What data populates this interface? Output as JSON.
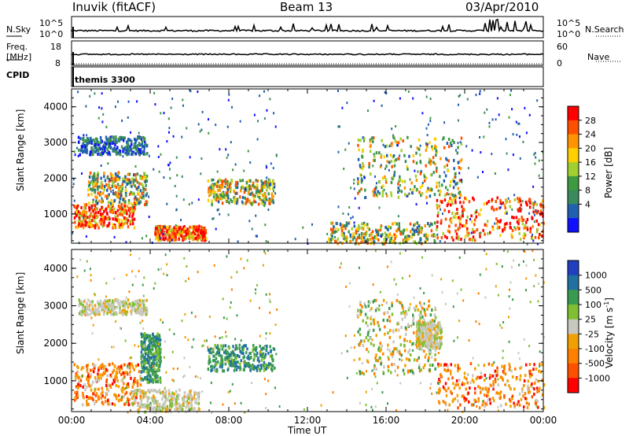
{
  "header": {
    "station": "Inuvik (fitACF)",
    "beam": "Beam 13",
    "date": "03/Apr/2010"
  },
  "panels": {
    "nsky": {
      "label": "N.Sky",
      "left_ticks": [
        "10^5",
        "10^0"
      ],
      "right_label": "N.Search",
      "right_ticks": [
        "10^5",
        "10^0"
      ],
      "right_line_style": "dotted"
    },
    "freq": {
      "label_top": "Freq.",
      "label_bottom": "[MHz]",
      "left_ticks": [
        "18",
        "8"
      ],
      "right_label": "Nave",
      "right_ticks": [
        "60",
        "0"
      ],
      "right_line_style": "dotted"
    },
    "cpid": {
      "label": "CPID",
      "value": "themis 3300"
    }
  },
  "chart_data": [
    {
      "type": "heatmap",
      "title": "",
      "quantity": "Power",
      "ylabel": "Slant Range [km]",
      "xlabel": "",
      "ylim": [
        180,
        4500
      ],
      "yticks": [
        "1000",
        "2000",
        "3000",
        "4000"
      ],
      "colorbar": {
        "label": "Power [dB]",
        "ticks": [
          "28",
          "24",
          "20",
          "16",
          "12",
          "8",
          "4"
        ],
        "colors": [
          "#ff0000",
          "#ff5000",
          "#ff9400",
          "#ffd000",
          "#a0d030",
          "#3e9a3e",
          "#3a8a5e",
          "#2060b0",
          "#1010ff"
        ]
      },
      "regions": [
        {
          "x": [
            0.1,
            3.2
          ],
          "y": [
            650,
            1300
          ],
          "level": "high"
        },
        {
          "x": [
            0.8,
            3.8
          ],
          "y": [
            1300,
            2200
          ],
          "level": "mid"
        },
        {
          "x": [
            4.2,
            6.8
          ],
          "y": [
            300,
            700
          ],
          "level": "high"
        },
        {
          "x": [
            6.9,
            10.3
          ],
          "y": [
            1300,
            2000
          ],
          "level": "mid"
        },
        {
          "x": [
            0.3,
            3.8
          ],
          "y": [
            2700,
            3200
          ],
          "level": "low"
        },
        {
          "x": [
            14.5,
            19.8
          ],
          "y": [
            1500,
            3200
          ],
          "level": "mid"
        },
        {
          "x": [
            18.5,
            24.0
          ],
          "y": [
            300,
            1500
          ],
          "level": "high"
        },
        {
          "x": [
            13.0,
            18.5
          ],
          "y": [
            200,
            800
          ],
          "level": "mid"
        }
      ]
    },
    {
      "type": "heatmap",
      "title": "",
      "quantity": "Velocity",
      "ylabel": "Slant Range [km]",
      "xlabel": "Time UT",
      "xticks": [
        "00:00",
        "04:00",
        "08:00",
        "12:00",
        "16:00",
        "20:00",
        "00:00"
      ],
      "ylim": [
        180,
        4500
      ],
      "yticks": [
        "1000",
        "2000",
        "3000",
        "4000"
      ],
      "colorbar": {
        "label": "Velocity [m s",
        "label_sup": "-1",
        "label_end": "]",
        "ticks": [
          "1000",
          "500",
          "100",
          "25",
          "-25",
          "-100",
          "-500",
          "-1000"
        ],
        "colors": [
          "#2040c0",
          "#2070a0",
          "#3a9a50",
          "#80c030",
          "#c8c8c0",
          "#f0a000",
          "#ff8000",
          "#ff5000",
          "#ff0000"
        ]
      },
      "regions": [
        {
          "x": [
            0.1,
            3.5
          ],
          "y": [
            400,
            1500
          ],
          "level": "neg"
        },
        {
          "x": [
            3.0,
            6.5
          ],
          "y": [
            200,
            800
          ],
          "level": "grey"
        },
        {
          "x": [
            3.5,
            4.5
          ],
          "y": [
            1000,
            2300
          ],
          "level": "pos"
        },
        {
          "x": [
            6.9,
            10.3
          ],
          "y": [
            1300,
            2000
          ],
          "level": "pos"
        },
        {
          "x": [
            0.3,
            3.8
          ],
          "y": [
            2800,
            3200
          ],
          "level": "grey"
        },
        {
          "x": [
            14.5,
            18.5
          ],
          "y": [
            1200,
            3200
          ],
          "level": "negpos"
        },
        {
          "x": [
            17.5,
            18.8
          ],
          "y": [
            1900,
            2600
          ],
          "level": "grey"
        },
        {
          "x": [
            18.5,
            24.0
          ],
          "y": [
            300,
            1500
          ],
          "level": "neg"
        }
      ]
    }
  ]
}
